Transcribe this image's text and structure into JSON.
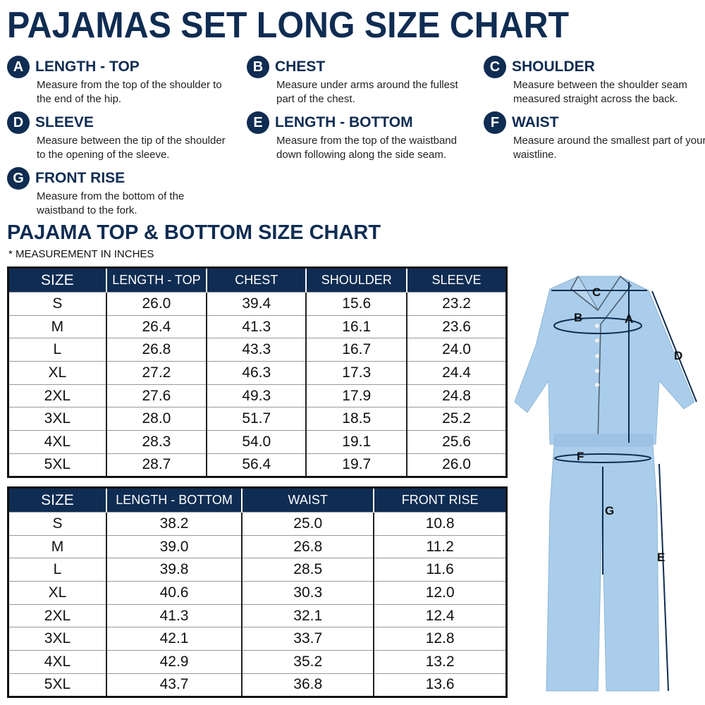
{
  "title": "PAJAMAS SET LONG SIZE CHART",
  "guide": [
    {
      "letter": "A",
      "label": "LENGTH - TOP",
      "desc": "Measure from the top of the shoulder to the end of the hip."
    },
    {
      "letter": "B",
      "label": "CHEST",
      "desc": "Measure under arms around the fullest part of the chest."
    },
    {
      "letter": "C",
      "label": "SHOULDER",
      "desc": "Measure between the shoulder seam measured straight across the back."
    },
    {
      "letter": "D",
      "label": "SLEEVE",
      "desc": "Measure between the tip of the shoulder to the opening of the sleeve."
    },
    {
      "letter": "E",
      "label": "LENGTH - BOTTOM",
      "desc": "Measure from the top of the waistband down following along the side seam."
    },
    {
      "letter": "F",
      "label": "WAIST",
      "desc": "Measure around the smallest part of your waistline."
    },
    {
      "letter": "G",
      "label": "FRONT RISE",
      "desc": "Measure from the bottom of the waistband to the fork."
    }
  ],
  "subtitle": "PAJAMA TOP & BOTTOM SIZE CHART",
  "note": "* MEASUREMENT IN INCHES",
  "top_table": {
    "headers": [
      "SIZE",
      "LENGTH - TOP",
      "CHEST",
      "SHOULDER",
      "SLEEVE"
    ],
    "rows": [
      [
        "S",
        "26.0",
        "39.4",
        "15.6",
        "23.2"
      ],
      [
        "M",
        "26.4",
        "41.3",
        "16.1",
        "23.6"
      ],
      [
        "L",
        "26.8",
        "43.3",
        "16.7",
        "24.0"
      ],
      [
        "XL",
        "27.2",
        "46.3",
        "17.3",
        "24.4"
      ],
      [
        "2XL",
        "27.6",
        "49.3",
        "17.9",
        "24.8"
      ],
      [
        "3XL",
        "28.0",
        "51.7",
        "18.5",
        "25.2"
      ],
      [
        "4XL",
        "28.3",
        "54.0",
        "19.1",
        "25.6"
      ],
      [
        "5XL",
        "28.7",
        "56.4",
        "19.7",
        "26.0"
      ]
    ]
  },
  "bottom_table": {
    "headers": [
      "SIZE",
      "LENGTH - BOTTOM",
      "WAIST",
      "FRONT RISE"
    ],
    "rows": [
      [
        "S",
        "38.2",
        "25.0",
        "10.8"
      ],
      [
        "M",
        "39.0",
        "26.8",
        "11.2"
      ],
      [
        "L",
        "39.8",
        "28.5",
        "11.6"
      ],
      [
        "XL",
        "40.6",
        "30.3",
        "12.0"
      ],
      [
        "2XL",
        "41.3",
        "32.1",
        "12.4"
      ],
      [
        "3XL",
        "42.1",
        "33.7",
        "12.8"
      ],
      [
        "4XL",
        "42.9",
        "35.2",
        "13.2"
      ],
      [
        "5XL",
        "43.7",
        "36.8",
        "13.6"
      ]
    ]
  },
  "colors": {
    "navy": "#0f2c52",
    "fabric": "#a9cdea"
  }
}
